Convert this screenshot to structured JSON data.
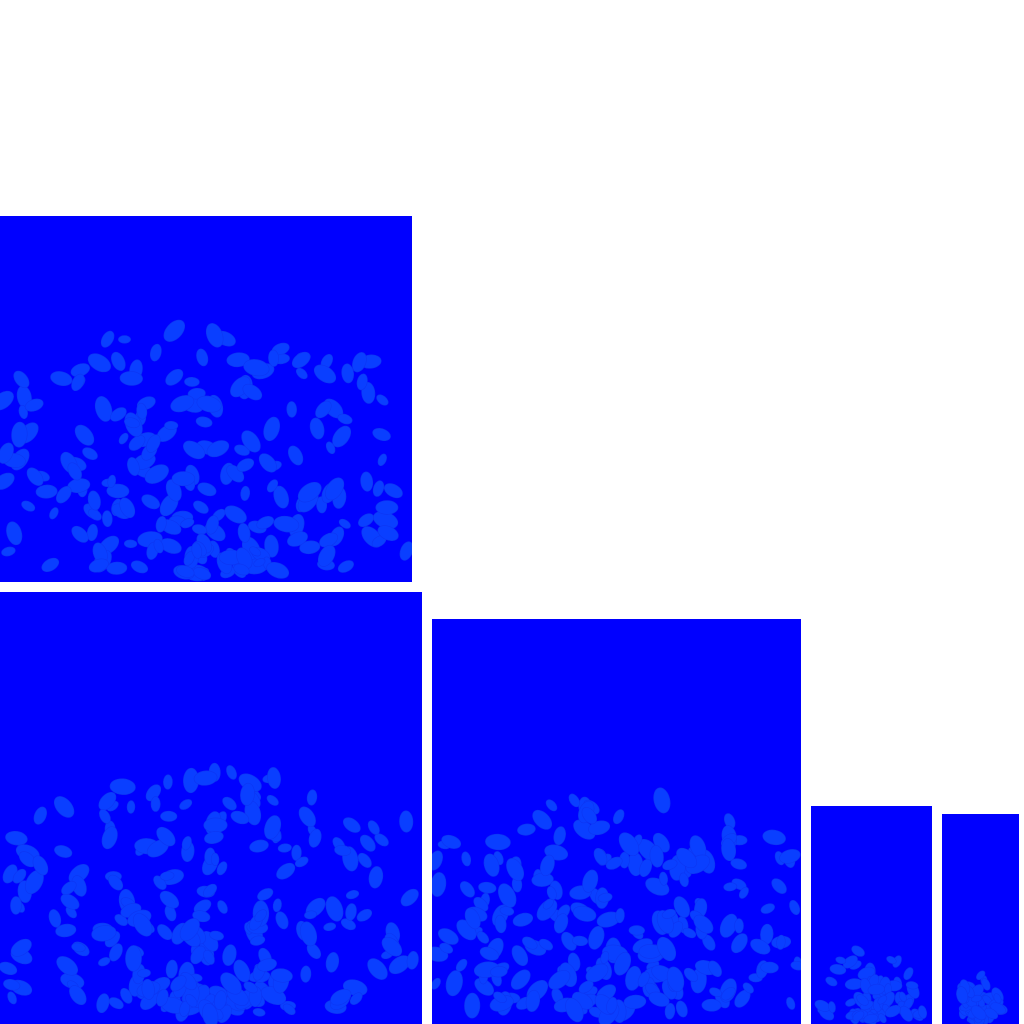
{
  "colors": {
    "page_background": "#ffffff",
    "panel_background": "#0000ff",
    "leaf_fill": "#0a3fff",
    "leaf_stroke": "#0d36f2"
  },
  "panels": [
    {
      "id": "p1",
      "description_name": "leaf-cluster-panel-top-left",
      "leaf_count": 260,
      "seed": 11
    },
    {
      "id": "p2",
      "description_name": "leaf-cluster-panel-bottom-left",
      "leaf_count": 300,
      "seed": 23
    },
    {
      "id": "p3",
      "description_name": "leaf-cluster-panel-bottom-middle",
      "leaf_count": 260,
      "seed": 37
    },
    {
      "id": "p4",
      "description_name": "leaf-cluster-panel-narrow",
      "leaf_count": 70,
      "seed": 51
    },
    {
      "id": "p5",
      "description_name": "leaf-cluster-panel-narrowest",
      "leaf_count": 45,
      "seed": 67
    }
  ]
}
